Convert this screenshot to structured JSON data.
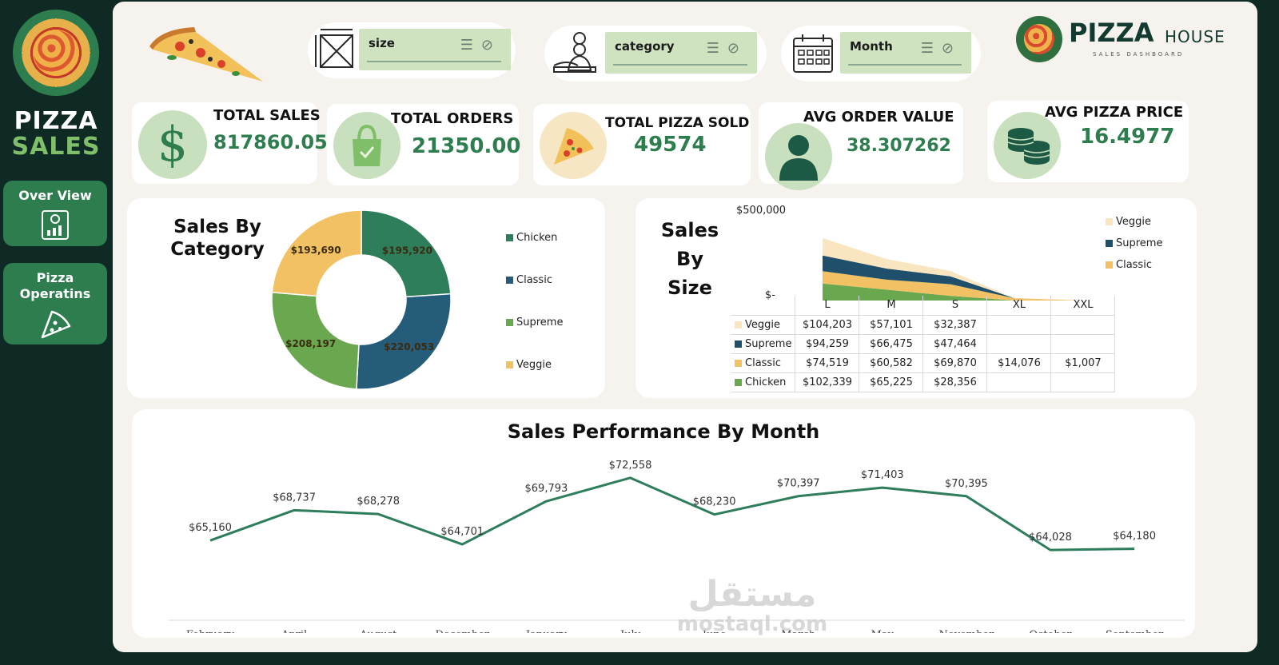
{
  "sidebar": {
    "brand_line1": "PIZZA",
    "brand_line2": "SALES",
    "nav": [
      {
        "label": "Over View",
        "icon": "report-chart-icon"
      },
      {
        "label": "Pizza Operatins",
        "icon": "pizza-slice-icon"
      }
    ]
  },
  "header": {
    "brand": "PIZZA",
    "brand_suffix": "HOUSE",
    "brand_tagline": "SALES DASHBOARD"
  },
  "slicers": [
    {
      "label": "size",
      "icon": "resize-icon"
    },
    {
      "label": "category",
      "icon": "chef-icon"
    },
    {
      "label": "Month",
      "icon": "calendar-icon"
    }
  ],
  "kpis": [
    {
      "title": "TOTAL SALES",
      "value": "817860.05",
      "icon": "dollar-icon"
    },
    {
      "title": "TOTAL ORDERS",
      "value": "21350.00",
      "icon": "shopping-bag-icon"
    },
    {
      "title": "TOTAL PIZZA SOLD",
      "value": "49574",
      "icon": "pizza-icon"
    },
    {
      "title": "AVG ORDER VALUE",
      "value": "38.307262",
      "icon": "user-icon"
    },
    {
      "title": "AVG PIZZA PRICE",
      "value": "16.4977",
      "icon": "coins-icon"
    }
  ],
  "colors": {
    "chicken": "#2e7d5b",
    "classic": "#255c7a",
    "supreme": "#6aa84f",
    "veggie": "#f1c163",
    "veggie_area": "#f9e6c0",
    "supreme_area": "#1f4f6b",
    "classic_area": "#f1c163",
    "chicken_area": "#6aa84f",
    "line": "#2e7d5b"
  },
  "chart_data": [
    {
      "type": "pie",
      "title_line1": "Sales By",
      "title_line2": "Category",
      "categories": [
        "Chicken",
        "Classic",
        "Supreme",
        "Veggie"
      ],
      "values": [
        195920,
        220053,
        208197,
        193690
      ],
      "value_labels": [
        "$195,920",
        "$220,053",
        "$208,197",
        "$193,690"
      ],
      "legend": "right"
    },
    {
      "type": "area",
      "title_line1": "Sales",
      "title_line2": "By",
      "title_line3": "Size",
      "categories": [
        "L",
        "M",
        "S",
        "XL",
        "XXL"
      ],
      "ytick_top": "$500,000",
      "ytick_bottom": "$-",
      "ylim": [
        0,
        500000
      ],
      "legend_entries": [
        "Veggie",
        "Supreme",
        "Classic"
      ],
      "legend": "right",
      "series": [
        {
          "name": "Veggie",
          "values": [
            104203,
            57101,
            32387,
            null,
            null
          ],
          "labels": [
            "$104,203",
            "$57,101",
            "$32,387",
            "",
            ""
          ]
        },
        {
          "name": "Supreme",
          "values": [
            94259,
            66475,
            47464,
            null,
            null
          ],
          "labels": [
            "$94,259",
            "$66,475",
            "$47,464",
            "",
            ""
          ]
        },
        {
          "name": "Classic",
          "values": [
            74519,
            60582,
            69870,
            14076,
            1007
          ],
          "labels": [
            "$74,519",
            "$60,582",
            "$69,870",
            "$14,076",
            "$1,007"
          ]
        },
        {
          "name": "Chicken",
          "values": [
            102339,
            65225,
            28356,
            null,
            null
          ],
          "labels": [
            "$102,339",
            "$65,225",
            "$28,356",
            "",
            ""
          ]
        }
      ]
    },
    {
      "type": "line",
      "title": "Sales Performance By Month",
      "categories": [
        "February",
        "April",
        "August",
        "December",
        "January",
        "July",
        "June",
        "March",
        "May",
        "November",
        "October",
        "September"
      ],
      "values": [
        65160,
        68737,
        68278,
        64701,
        69793,
        72558,
        68230,
        70397,
        71403,
        70395,
        64028,
        64180
      ],
      "value_labels": [
        "$65,160",
        "$68,737",
        "$68,278",
        "$64,701",
        "$69,793",
        "$72,558",
        "$68,230",
        "$70,397",
        "$71,403",
        "$70,395",
        "$64,028",
        "$64,180"
      ],
      "ylim": [
        58000,
        75000
      ]
    }
  ],
  "watermark": {
    "line1": "مستقل",
    "line2": "mostaql.com"
  }
}
